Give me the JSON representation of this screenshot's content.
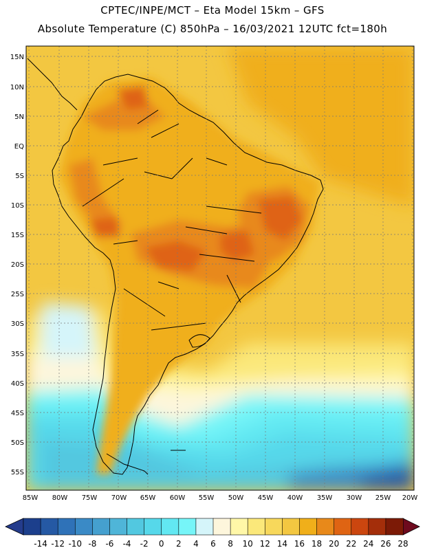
{
  "header": {
    "line1": "CPTEC/INPE/MCT –  Eta Model 15km – GFS",
    "line2": "Absolute Temperature (C) 850hPa – 16/03/2021 12UTC fct=180h"
  },
  "axes": {
    "lat_labels": [
      "15N",
      "10N",
      "5N",
      "EQ",
      "5S",
      "10S",
      "15S",
      "20S",
      "25S",
      "30S",
      "35S",
      "40S",
      "45S",
      "50S",
      "55S"
    ],
    "lon_labels": [
      "85W",
      "80W",
      "75W",
      "70W",
      "65W",
      "60W",
      "55W",
      "50W",
      "45W",
      "40W",
      "35W",
      "30W",
      "25W",
      "20W"
    ]
  },
  "colorbar": {
    "labels": [
      "-14",
      "-12",
      "-10",
      "-8",
      "-6",
      "-4",
      "-2",
      "0",
      "2",
      "4",
      "6",
      "8",
      "10",
      "12",
      "14",
      "16",
      "18",
      "20",
      "22",
      "24",
      "26",
      "28"
    ],
    "colors": [
      "#1c3f8c",
      "#2559a4",
      "#2f72b8",
      "#3a8ac6",
      "#45a0cf",
      "#4fb5d8",
      "#52c8e0",
      "#56d8ea",
      "#62e8f2",
      "#76f5f8",
      "#d5f5fa",
      "#fdf6dc",
      "#fff7a8",
      "#fbe87a",
      "#f7d85b",
      "#f3c741",
      "#f0af1a",
      "#e8891a",
      "#df6413",
      "#cb460f",
      "#a42e0a",
      "#7c1a06"
    ],
    "under_color": "#243c8c",
    "over_color": "#6e0a1e"
  }
}
